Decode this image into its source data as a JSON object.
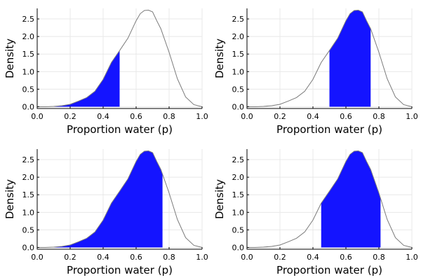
{
  "colors": {
    "fill": "#1414ff",
    "curve": "#7a7a7a",
    "grid": "#e8e8e8"
  },
  "chart_data": [
    {
      "type": "area",
      "xlabel": "Proportion water (p)",
      "ylabel": "Density",
      "xlim": [
        0,
        1
      ],
      "ylim": [
        -0.05,
        2.8
      ],
      "xticks": [
        "0.0",
        "0.2",
        "0.4",
        "0.6",
        "0.8",
        "1.0"
      ],
      "yticks": [
        "0.0",
        "0.5",
        "1.0",
        "1.5",
        "2.0",
        "2.5"
      ],
      "grid": true,
      "shade_range": [
        0.0,
        0.5
      ],
      "x": [
        0,
        0.05,
        0.1,
        0.15,
        0.2,
        0.25,
        0.3,
        0.35,
        0.4,
        0.45,
        0.5,
        0.55,
        0.6,
        0.625,
        0.65,
        0.675,
        0.7,
        0.725,
        0.75,
        0.8,
        0.85,
        0.9,
        0.95,
        1.0
      ],
      "y": [
        0.0,
        0.0,
        0.01,
        0.03,
        0.07,
        0.16,
        0.26,
        0.44,
        0.78,
        1.26,
        1.6,
        1.95,
        2.45,
        2.65,
        2.74,
        2.75,
        2.7,
        2.45,
        2.22,
        1.55,
        0.8,
        0.28,
        0.06,
        0.0
      ]
    },
    {
      "type": "area",
      "xlabel": "Proportion water (p)",
      "ylabel": "Density",
      "xlim": [
        0,
        1
      ],
      "ylim": [
        -0.05,
        2.8
      ],
      "xticks": [
        "0.0",
        "0.2",
        "0.4",
        "0.6",
        "0.8",
        "1.0"
      ],
      "yticks": [
        "0.0",
        "0.5",
        "1.0",
        "1.5",
        "2.0",
        "2.5"
      ],
      "grid": true,
      "shade_range": [
        0.5,
        0.75
      ],
      "x": [
        0,
        0.05,
        0.1,
        0.15,
        0.2,
        0.25,
        0.3,
        0.35,
        0.4,
        0.45,
        0.5,
        0.55,
        0.6,
        0.625,
        0.65,
        0.675,
        0.7,
        0.725,
        0.75,
        0.8,
        0.85,
        0.9,
        0.95,
        1.0
      ],
      "y": [
        0.0,
        0.0,
        0.01,
        0.03,
        0.07,
        0.16,
        0.26,
        0.44,
        0.78,
        1.26,
        1.6,
        1.95,
        2.45,
        2.65,
        2.74,
        2.75,
        2.7,
        2.45,
        2.22,
        1.55,
        0.8,
        0.28,
        0.06,
        0.0
      ]
    },
    {
      "type": "area",
      "xlabel": "Proportion water (p)",
      "ylabel": "Density",
      "xlim": [
        0,
        1
      ],
      "ylim": [
        -0.05,
        2.8
      ],
      "xticks": [
        "0.0",
        "0.2",
        "0.4",
        "0.6",
        "0.8",
        "1.0"
      ],
      "yticks": [
        "0.0",
        "0.5",
        "1.0",
        "1.5",
        "2.0",
        "2.5"
      ],
      "grid": true,
      "shade_range": [
        0.0,
        0.76
      ],
      "x": [
        0,
        0.05,
        0.1,
        0.15,
        0.2,
        0.25,
        0.3,
        0.35,
        0.4,
        0.45,
        0.5,
        0.55,
        0.6,
        0.625,
        0.65,
        0.675,
        0.7,
        0.725,
        0.75,
        0.8,
        0.85,
        0.9,
        0.95,
        1.0
      ],
      "y": [
        0.0,
        0.0,
        0.01,
        0.03,
        0.07,
        0.16,
        0.26,
        0.44,
        0.78,
        1.26,
        1.6,
        1.95,
        2.45,
        2.65,
        2.74,
        2.75,
        2.7,
        2.45,
        2.22,
        1.55,
        0.8,
        0.28,
        0.06,
        0.0
      ]
    },
    {
      "type": "area",
      "xlabel": "Proportion water (p)",
      "ylabel": "Density",
      "xlim": [
        0,
        1
      ],
      "ylim": [
        -0.05,
        2.8
      ],
      "xticks": [
        "0.0",
        "0.2",
        "0.4",
        "0.6",
        "0.8",
        "1.0"
      ],
      "yticks": [
        "0.0",
        "0.5",
        "1.0",
        "1.5",
        "2.0",
        "2.5"
      ],
      "grid": true,
      "shade_range": [
        0.45,
        0.81
      ],
      "x": [
        0,
        0.05,
        0.1,
        0.15,
        0.2,
        0.25,
        0.3,
        0.35,
        0.4,
        0.45,
        0.5,
        0.55,
        0.6,
        0.625,
        0.65,
        0.675,
        0.7,
        0.725,
        0.75,
        0.8,
        0.85,
        0.9,
        0.95,
        1.0
      ],
      "y": [
        0.0,
        0.0,
        0.01,
        0.03,
        0.07,
        0.16,
        0.26,
        0.44,
        0.78,
        1.26,
        1.6,
        1.95,
        2.45,
        2.65,
        2.74,
        2.75,
        2.7,
        2.45,
        2.22,
        1.55,
        0.8,
        0.28,
        0.06,
        0.0
      ]
    }
  ]
}
